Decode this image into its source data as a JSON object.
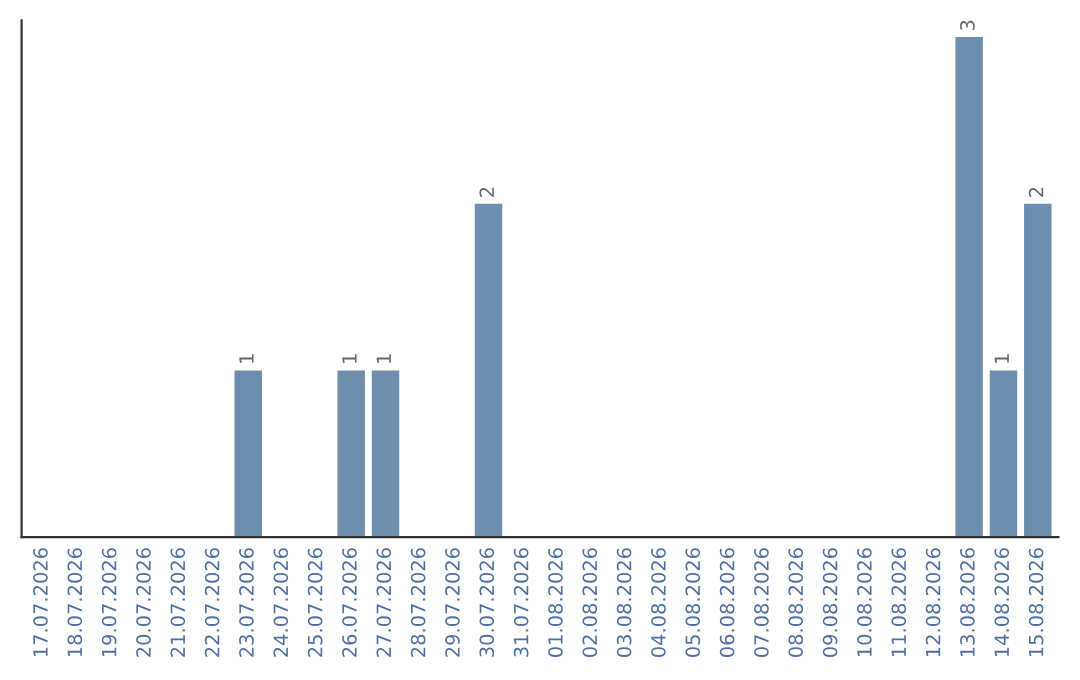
{
  "chart_data": {
    "type": "bar",
    "categories": [
      "17.07.2026",
      "18.07.2026",
      "19.07.2026",
      "20.07.2026",
      "21.07.2026",
      "22.07.2026",
      "23.07.2026",
      "24.07.2026",
      "25.07.2026",
      "26.07.2026",
      "27.07.2026",
      "28.07.2026",
      "29.07.2026",
      "30.07.2026",
      "31.07.2026",
      "01.08.2026",
      "02.08.2026",
      "03.08.2026",
      "04.08.2026",
      "05.08.2026",
      "06.08.2026",
      "07.08.2026",
      "08.08.2026",
      "09.08.2026",
      "10.08.2026",
      "11.08.2026",
      "12.08.2026",
      "13.08.2026",
      "14.08.2026",
      "15.08.2026"
    ],
    "values": [
      0,
      0,
      0,
      0,
      0,
      0,
      1,
      0,
      0,
      1,
      1,
      0,
      0,
      2,
      0,
      0,
      0,
      0,
      0,
      0,
      0,
      0,
      0,
      0,
      0,
      0,
      0,
      3,
      1,
      2
    ],
    "value_labels": [
      null,
      null,
      null,
      null,
      null,
      null,
      "1",
      null,
      null,
      "1",
      "1",
      null,
      null,
      "2",
      null,
      null,
      null,
      null,
      null,
      null,
      null,
      null,
      null,
      null,
      null,
      null,
      null,
      "3",
      "1",
      "2"
    ],
    "color": "#6d8eae",
    "ylim": [
      0,
      3.1
    ],
    "tick_labels": "x",
    "grid": false
  }
}
